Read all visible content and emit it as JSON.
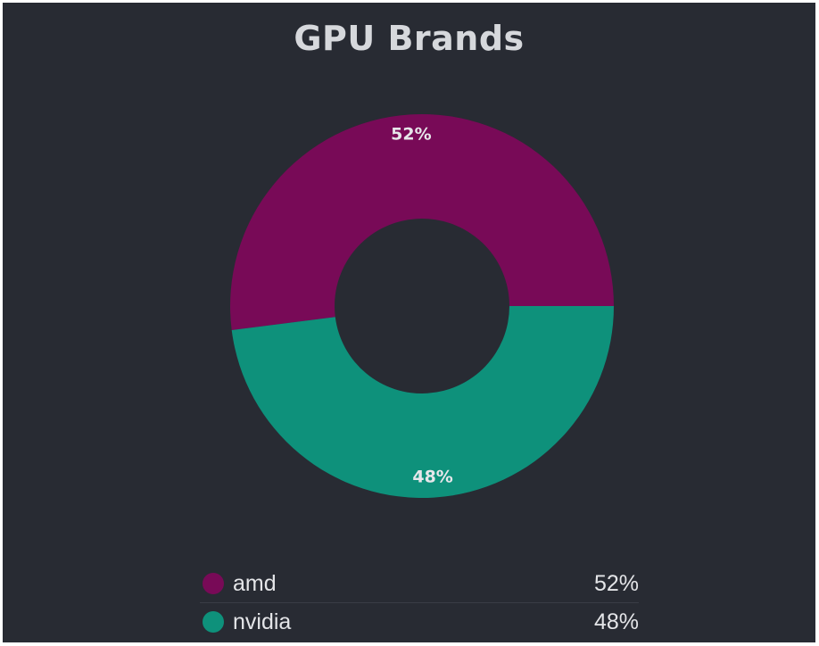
{
  "colors": {
    "background": "#282b33",
    "amd": "#780a57",
    "nvidia": "#0e917b"
  },
  "chart_data": {
    "type": "pie",
    "variant": "donut",
    "title": "GPU Brands",
    "slices": [
      {
        "name": "amd",
        "value": 52,
        "label": "52%",
        "color": "#780a57"
      },
      {
        "name": "nvidia",
        "value": 48,
        "label": "48%",
        "color": "#0e917b"
      }
    ],
    "legend_placement": "bottom"
  },
  "legend": {
    "items": [
      {
        "name": "amd",
        "value": "52%",
        "color": "#780a57"
      },
      {
        "name": "nvidia",
        "value": "48%",
        "color": "#0e917b"
      }
    ]
  }
}
